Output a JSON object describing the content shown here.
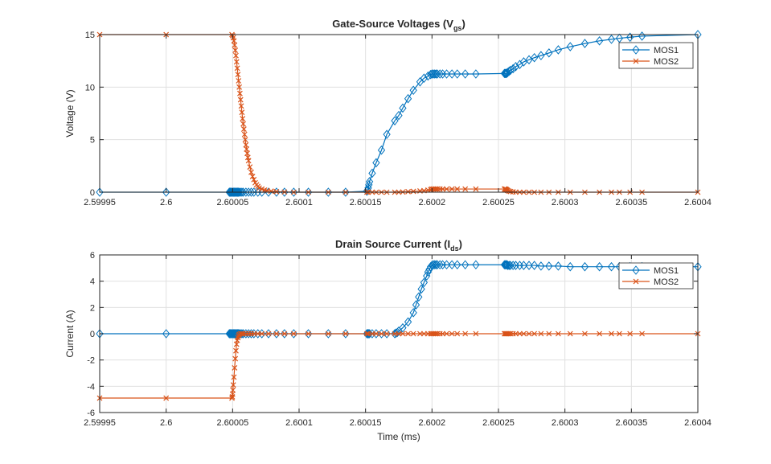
{
  "colors": {
    "mos1": "#0072BD",
    "mos2": "#D95319",
    "grid": "#e0e0e0",
    "axis": "#262626"
  },
  "chart_data": [
    {
      "type": "line",
      "title": "Gate-Source  Voltages  (V",
      "title_sub": "gs",
      "title_end": ")",
      "xlabel": "",
      "ylabel": "Voltage (V)",
      "xlim": [
        2.59995,
        2.6004
      ],
      "ylim": [
        0,
        15
      ],
      "xticks": [
        2.59995,
        2.6,
        2.60005,
        2.6001,
        2.60015,
        2.6002,
        2.60025,
        2.6003,
        2.60035,
        2.6004
      ],
      "xticklabels": [
        "2.59995",
        "2.6",
        "2.60005",
        "2.6001",
        "2.60015",
        "2.6002",
        "2.60025",
        "2.6003",
        "2.60035",
        "2.6004"
      ],
      "yticks": [
        0,
        5,
        10,
        15
      ],
      "yticklabels": [
        "0",
        "5",
        "10",
        "15"
      ],
      "grid": true,
      "legend": "top-right",
      "series": [
        {
          "name": "MOS1",
          "marker": "diamond",
          "x": [
            2.59995,
            2.6,
            2.6000475,
            2.600048,
            2.6000485,
            2.600049,
            2.6000495,
            2.60005,
            2.6000505,
            2.600051,
            2.6000515,
            2.600052,
            2.6000525,
            2.600053,
            2.6000535,
            2.600054,
            2.6000545,
            2.600055,
            2.600056,
            2.600057,
            2.600058,
            2.60006,
            2.600062,
            2.600064,
            2.600066,
            2.600069,
            2.600072,
            2.600077,
            2.600083,
            2.600089,
            2.600096,
            2.600107,
            2.600122,
            2.600135,
            2.600151,
            2.6001515,
            2.600152,
            2.6001525,
            2.600153,
            2.600155,
            2.600158,
            2.600162,
            2.600166,
            2.600172,
            2.600175,
            2.600178,
            2.600182,
            2.600186,
            2.600191,
            2.600194,
            2.600197,
            2.600199,
            2.6002,
            2.600201,
            2.600202,
            2.600203,
            2.600204,
            2.600206,
            2.600208,
            2.600211,
            2.600215,
            2.600219,
            2.600225,
            2.600233,
            2.6002545,
            2.600255,
            2.6002555,
            2.600256,
            2.6002565,
            2.600257,
            2.600258,
            2.600259,
            2.600261,
            2.600263,
            2.600266,
            2.600269,
            2.600273,
            2.600277,
            2.600282,
            2.600288,
            2.600295,
            2.600304,
            2.600315,
            2.600326,
            2.600335,
            2.600341,
            2.600349,
            2.600358,
            2.6004
          ],
          "y": [
            0,
            0,
            0,
            0,
            0,
            0,
            0,
            0,
            0,
            0,
            0,
            0,
            0,
            0,
            0,
            0,
            0,
            0,
            0,
            0,
            0,
            0,
            0,
            0,
            0,
            0,
            0,
            0,
            0,
            0,
            0,
            0,
            0,
            0,
            0.1,
            0.2,
            0.4,
            0.7,
            1.0,
            1.8,
            2.8,
            4.0,
            5.5,
            6.8,
            7.3,
            8.0,
            8.9,
            9.7,
            10.5,
            10.85,
            11.05,
            11.2,
            11.25,
            11.25,
            11.25,
            11.25,
            11.25,
            11.25,
            11.25,
            11.25,
            11.25,
            11.25,
            11.25,
            11.25,
            11.3,
            11.3,
            11.3,
            11.3,
            11.35,
            11.4,
            11.5,
            11.6,
            11.75,
            11.95,
            12.15,
            12.4,
            12.6,
            12.8,
            13.0,
            13.25,
            13.55,
            13.85,
            14.15,
            14.4,
            14.55,
            14.65,
            14.75,
            14.85,
            15.0
          ]
        },
        {
          "name": "MOS2",
          "marker": "x",
          "x": [
            2.59995,
            2.6,
            2.6000495,
            2.60005,
            2.6000505,
            2.600051,
            2.6000515,
            2.600052,
            2.6000525,
            2.600053,
            2.6000535,
            2.600054,
            2.6000545,
            2.600055,
            2.6000555,
            2.600056,
            2.6000565,
            2.600057,
            2.6000575,
            2.600058,
            2.6000585,
            2.600059,
            2.6000595,
            2.60006,
            2.6000605,
            2.600061,
            2.6000615,
            2.600062,
            2.600063,
            2.600064,
            2.600065,
            2.600066,
            2.600067,
            2.600068,
            2.600069,
            2.60007,
            2.600072,
            2.600074,
            2.600076,
            2.600079,
            2.600083,
            2.600089,
            2.600096,
            2.600107,
            2.600122,
            2.600135,
            2.600151,
            2.600152,
            2.600155,
            2.600158,
            2.600162,
            2.600166,
            2.600172,
            2.600175,
            2.600178,
            2.600182,
            2.600186,
            2.600191,
            2.600194,
            2.600197,
            2.600199,
            2.6002,
            2.600201,
            2.600202,
            2.600203,
            2.600204,
            2.600206,
            2.600208,
            2.600211,
            2.600215,
            2.600219,
            2.600225,
            2.600233,
            2.6002545,
            2.600255,
            2.6002555,
            2.600256,
            2.6002565,
            2.600257,
            2.600258,
            2.600259,
            2.600261,
            2.600263,
            2.600266,
            2.600269,
            2.600273,
            2.600277,
            2.600282,
            2.600288,
            2.600295,
            2.600304,
            2.600315,
            2.600326,
            2.600335,
            2.600341,
            2.600349,
            2.600358,
            2.6004
          ],
          "y": [
            15,
            15,
            15,
            14.9,
            14.7,
            14.4,
            14.0,
            13.5,
            13.0,
            12.4,
            11.8,
            11.2,
            10.6,
            10.0,
            9.4,
            8.8,
            8.2,
            7.6,
            7.0,
            6.5,
            6.0,
            5.5,
            5.0,
            4.5,
            4.1,
            3.7,
            3.3,
            3.0,
            2.4,
            1.9,
            1.5,
            1.2,
            0.9,
            0.7,
            0.55,
            0.4,
            0.3,
            0.2,
            0.15,
            0.1,
            0.05,
            0.02,
            0,
            0,
            0,
            0,
            0,
            0,
            0,
            0,
            0,
            0,
            0,
            0,
            0.02,
            0.05,
            0.08,
            0.12,
            0.15,
            0.2,
            0.25,
            0.3,
            0.3,
            0.3,
            0.3,
            0.3,
            0.3,
            0.3,
            0.3,
            0.3,
            0.3,
            0.3,
            0.3,
            0.3,
            0.3,
            0.28,
            0.25,
            0.2,
            0.15,
            0.1,
            0.06,
            0.03,
            0.01,
            0,
            0,
            0,
            0,
            0,
            0,
            0,
            0,
            0,
            0,
            0,
            0,
            0,
            0,
            0
          ]
        }
      ]
    },
    {
      "type": "line",
      "title": "Drain  Source  Current  (I",
      "title_sub": "ds",
      "title_end": ")",
      "xlabel": "Time (ms)",
      "ylabel": "Current (A)",
      "xlim": [
        2.59995,
        2.6004
      ],
      "ylim": [
        -6,
        6
      ],
      "xticks": [
        2.59995,
        2.6,
        2.60005,
        2.6001,
        2.60015,
        2.6002,
        2.60025,
        2.6003,
        2.60035,
        2.6004
      ],
      "xticklabels": [
        "2.59995",
        "2.6",
        "2.60005",
        "2.6001",
        "2.60015",
        "2.6002",
        "2.60025",
        "2.6003",
        "2.60035",
        "2.6004"
      ],
      "yticks": [
        -6,
        -4,
        -2,
        0,
        2,
        4,
        6
      ],
      "yticklabels": [
        "-6",
        "-4",
        "-2",
        "0",
        "2",
        "4",
        "6"
      ],
      "grid": true,
      "legend": "top-right",
      "series": [
        {
          "name": "MOS1",
          "marker": "diamond",
          "x": [
            2.59995,
            2.6,
            2.6000475,
            2.600048,
            2.6000485,
            2.600049,
            2.6000495,
            2.60005,
            2.6000505,
            2.600051,
            2.6000515,
            2.600052,
            2.6000525,
            2.600053,
            2.6000535,
            2.600054,
            2.6000545,
            2.600055,
            2.600056,
            2.600057,
            2.600058,
            2.60006,
            2.600062,
            2.600064,
            2.600066,
            2.600069,
            2.600072,
            2.600077,
            2.600083,
            2.600089,
            2.600096,
            2.600107,
            2.600122,
            2.600135,
            2.600151,
            2.6001515,
            2.600152,
            2.6001525,
            2.600153,
            2.600155,
            2.600158,
            2.600162,
            2.600166,
            2.600172,
            2.600173,
            2.600174,
            2.600175,
            2.600178,
            2.600182,
            2.600186,
            2.600188,
            2.60019,
            2.600192,
            2.600194,
            2.600196,
            2.600197,
            2.600198,
            2.600199,
            2.6002,
            2.600201,
            2.600202,
            2.600203,
            2.600204,
            2.600206,
            2.600208,
            2.600211,
            2.600215,
            2.600219,
            2.600225,
            2.600233,
            2.6002545,
            2.600255,
            2.6002555,
            2.600256,
            2.6002565,
            2.600257,
            2.600258,
            2.600259,
            2.600261,
            2.600263,
            2.600266,
            2.600269,
            2.600273,
            2.600277,
            2.600282,
            2.600288,
            2.600295,
            2.600304,
            2.600315,
            2.600326,
            2.600335,
            2.600341,
            2.600349,
            2.600358,
            2.6004
          ],
          "y": [
            0,
            0,
            0,
            0,
            0,
            0,
            0,
            0,
            0,
            0,
            0,
            0,
            0,
            0,
            0,
            0,
            0,
            0,
            0,
            0,
            0,
            0,
            0,
            0,
            0,
            0,
            0,
            0,
            0,
            0,
            0,
            0,
            0,
            0,
            0,
            0,
            0,
            0,
            0,
            0,
            0,
            0,
            0,
            0,
            0.05,
            0.1,
            0.2,
            0.45,
            0.9,
            1.6,
            2.2,
            2.8,
            3.4,
            3.9,
            4.4,
            4.7,
            4.9,
            5.1,
            5.2,
            5.25,
            5.25,
            5.25,
            5.25,
            5.25,
            5.25,
            5.25,
            5.25,
            5.25,
            5.25,
            5.25,
            5.25,
            5.25,
            5.25,
            5.25,
            5.25,
            5.2,
            5.2,
            5.2,
            5.2,
            5.2,
            5.2,
            5.2,
            5.2,
            5.2,
            5.15,
            5.15,
            5.15,
            5.1,
            5.1,
            5.1,
            5.1,
            5.1,
            5.1,
            5.1,
            5.1
          ]
        },
        {
          "name": "MOS2",
          "marker": "x",
          "x": [
            2.59995,
            2.6,
            2.6000495,
            2.6000498,
            2.60005,
            2.6000502,
            2.6000505,
            2.600051,
            2.6000515,
            2.600052,
            2.6000525,
            2.600053,
            2.6000535,
            2.600054,
            2.6000545,
            2.600055,
            2.600056,
            2.600057,
            2.600058,
            2.60006,
            2.600062,
            2.600064,
            2.600066,
            2.600069,
            2.600072,
            2.600077,
            2.600083,
            2.600089,
            2.600096,
            2.600107,
            2.600122,
            2.600135,
            2.600151,
            2.600152,
            2.600155,
            2.600158,
            2.600162,
            2.600166,
            2.600172,
            2.600175,
            2.600178,
            2.600182,
            2.600186,
            2.600191,
            2.600194,
            2.600197,
            2.600199,
            2.6002,
            2.600201,
            2.600202,
            2.600203,
            2.600204,
            2.600206,
            2.600208,
            2.600211,
            2.600215,
            2.600219,
            2.600225,
            2.600233,
            2.6002545,
            2.600255,
            2.6002555,
            2.600256,
            2.6002565,
            2.600257,
            2.600258,
            2.600259,
            2.600261,
            2.600263,
            2.600266,
            2.600269,
            2.600273,
            2.600277,
            2.600282,
            2.600288,
            2.600295,
            2.600304,
            2.600315,
            2.600326,
            2.600335,
            2.600341,
            2.600349,
            2.600358,
            2.6004
          ],
          "y": [
            -4.9,
            -4.9,
            -4.9,
            -4.8,
            -4.6,
            -4.3,
            -3.9,
            -3.3,
            -2.6,
            -1.9,
            -1.3,
            -0.8,
            -0.5,
            -0.3,
            -0.15,
            -0.05,
            0,
            0,
            0,
            0,
            0,
            0,
            0,
            0,
            0,
            0,
            0,
            0,
            0,
            0,
            0,
            0,
            0,
            0,
            0,
            0,
            0,
            0,
            0,
            0,
            0,
            0,
            0,
            0,
            0,
            0,
            0,
            0,
            0,
            0,
            0,
            0,
            0,
            0,
            0,
            0,
            0,
            0,
            0,
            0,
            0,
            0,
            0,
            0,
            0,
            0,
            0,
            0,
            0,
            0,
            0,
            0,
            0,
            0,
            0,
            0,
            0,
            0,
            0,
            0,
            0,
            0,
            0,
            0
          ]
        }
      ]
    }
  ]
}
